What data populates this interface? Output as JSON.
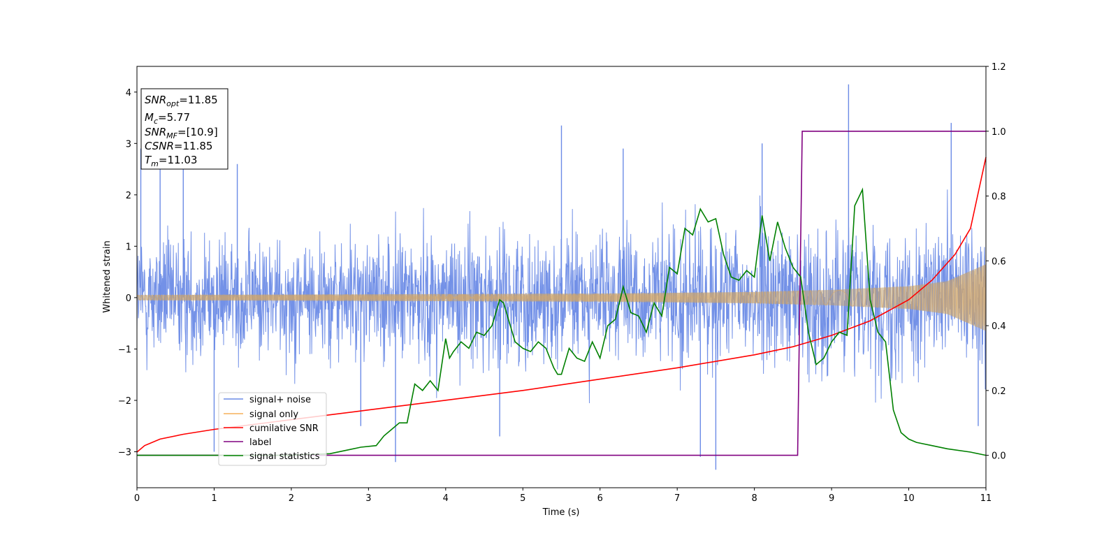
{
  "chart_data": {
    "type": "line",
    "xlabel": "Time (s)",
    "ylabel": "Whitened strain",
    "xlim": [
      0,
      11
    ],
    "ylim_left": [
      -3.7,
      4.5
    ],
    "ylim_right": [
      -0.1,
      1.2
    ],
    "x_ticks": [
      0,
      1,
      2,
      3,
      4,
      5,
      6,
      7,
      8,
      9,
      10,
      11
    ],
    "y_ticks_left": [
      -3,
      -2,
      -1,
      0,
      1,
      2,
      3,
      4
    ],
    "y_ticks_right": [
      "0.0",
      "0.2",
      "0.4",
      "0.6",
      "0.8",
      "1.0",
      "1.2"
    ],
    "grid": false,
    "legend_position": "lower-left",
    "colors": {
      "signal_noise": "#6b8be6",
      "signal_only": "#f5b15a",
      "cumulative_snr": "#ff0000",
      "label": "#800080",
      "signal_statistics": "#008000"
    },
    "info_box": {
      "snr_opt": {
        "label": "SNR",
        "sub": "opt",
        "value": "=11.85"
      },
      "mc": {
        "label": "M",
        "sub": "c",
        "value": "=5.77"
      },
      "snr_mf": {
        "label": "SNR",
        "sub": "MF",
        "value": "=[10.9]"
      },
      "csnr": {
        "label": "CSNR",
        "sub": "",
        "value": "=11.85"
      },
      "tm": {
        "label": "T",
        "sub": "m",
        "value": "=11.03"
      }
    },
    "series": [
      {
        "name": "signal+ noise",
        "axis": "left",
        "note": "whitened noisy strain, approx. |amplitude| 2 with spikes",
        "envelope_x": [
          0,
          1,
          2,
          3,
          4,
          5,
          6,
          7,
          8,
          9,
          10,
          11
        ],
        "envelope_y": [
          2.0,
          1.9,
          1.9,
          2.0,
          2.1,
          2.1,
          2.1,
          2.2,
          2.2,
          2.2,
          2.2,
          2.2
        ],
        "spikes": [
          {
            "x": 0.05,
            "y": 2.9
          },
          {
            "x": 0.3,
            "y": 2.6
          },
          {
            "x": 0.6,
            "y": 2.7
          },
          {
            "x": 1.0,
            "y": -3.0
          },
          {
            "x": 1.3,
            "y": 2.6
          },
          {
            "x": 3.35,
            "y": -3.2
          },
          {
            "x": 5.5,
            "y": 3.35
          },
          {
            "x": 7.3,
            "y": -3.1
          },
          {
            "x": 7.5,
            "y": -3.35
          },
          {
            "x": 8.1,
            "y": 3.0
          },
          {
            "x": 9.22,
            "y": 4.15
          },
          {
            "x": 10.55,
            "y": 3.4
          },
          {
            "x": 4.7,
            "y": -2.7
          },
          {
            "x": 2.9,
            "y": -2.5
          },
          {
            "x": 6.3,
            "y": 2.9
          },
          {
            "x": 10.9,
            "y": -2.5
          }
        ]
      },
      {
        "name": "signal only",
        "axis": "left",
        "note": "chirp whose amplitude grows toward merger",
        "amplitude_x": [
          0,
          2,
          4,
          6,
          8,
          9,
          10,
          10.5,
          11
        ],
        "amplitude_y": [
          0.05,
          0.06,
          0.07,
          0.08,
          0.11,
          0.15,
          0.22,
          0.32,
          0.65
        ]
      },
      {
        "name": "cumilative SNR",
        "axis": "right",
        "x": [
          0,
          0.1,
          0.3,
          0.6,
          1,
          2,
          3,
          4,
          5,
          6,
          7,
          8,
          8.5,
          9,
          9.5,
          10,
          10.3,
          10.6,
          10.8,
          11
        ],
        "y": [
          0.01,
          0.03,
          0.05,
          0.065,
          0.08,
          0.11,
          0.14,
          0.17,
          0.2,
          0.235,
          0.27,
          0.31,
          0.335,
          0.37,
          0.415,
          0.48,
          0.54,
          0.62,
          0.7,
          0.92
        ]
      },
      {
        "name": "label",
        "axis": "right",
        "x": [
          0,
          8.56,
          8.62,
          11
        ],
        "y": [
          0.0,
          0.0,
          1.0,
          1.0
        ]
      },
      {
        "name": "signal statistics",
        "axis": "right",
        "x": [
          0,
          1,
          2,
          2.5,
          2.7,
          2.9,
          3.1,
          3.2,
          3.3,
          3.4,
          3.5,
          3.6,
          3.7,
          3.8,
          3.9,
          4.0,
          4.05,
          4.1,
          4.2,
          4.3,
          4.4,
          4.5,
          4.6,
          4.7,
          4.75,
          4.8,
          4.9,
          5.0,
          5.1,
          5.2,
          5.3,
          5.4,
          5.45,
          5.5,
          5.6,
          5.7,
          5.8,
          5.9,
          6.0,
          6.1,
          6.2,
          6.3,
          6.4,
          6.5,
          6.6,
          6.7,
          6.8,
          6.9,
          7.0,
          7.1,
          7.2,
          7.3,
          7.4,
          7.5,
          7.6,
          7.7,
          7.8,
          7.9,
          8.0,
          8.1,
          8.2,
          8.3,
          8.4,
          8.5,
          8.6,
          8.7,
          8.8,
          8.9,
          9.0,
          9.1,
          9.2,
          9.3,
          9.4,
          9.5,
          9.6,
          9.7,
          9.8,
          9.9,
          10.0,
          10.1,
          10.3,
          10.5,
          10.8,
          11.0
        ],
        "y": [
          0.0,
          0.0,
          0.0,
          0.005,
          0.015,
          0.025,
          0.03,
          0.06,
          0.08,
          0.1,
          0.1,
          0.22,
          0.2,
          0.23,
          0.2,
          0.36,
          0.3,
          0.32,
          0.35,
          0.33,
          0.38,
          0.37,
          0.4,
          0.48,
          0.47,
          0.43,
          0.35,
          0.33,
          0.32,
          0.35,
          0.33,
          0.27,
          0.25,
          0.25,
          0.33,
          0.3,
          0.29,
          0.35,
          0.3,
          0.4,
          0.42,
          0.52,
          0.44,
          0.43,
          0.38,
          0.47,
          0.43,
          0.58,
          0.56,
          0.7,
          0.68,
          0.76,
          0.72,
          0.73,
          0.62,
          0.55,
          0.54,
          0.57,
          0.55,
          0.74,
          0.6,
          0.72,
          0.64,
          0.58,
          0.55,
          0.38,
          0.28,
          0.3,
          0.35,
          0.38,
          0.37,
          0.77,
          0.82,
          0.48,
          0.38,
          0.35,
          0.14,
          0.07,
          0.05,
          0.04,
          0.03,
          0.02,
          0.01,
          0.0
        ]
      }
    ]
  }
}
